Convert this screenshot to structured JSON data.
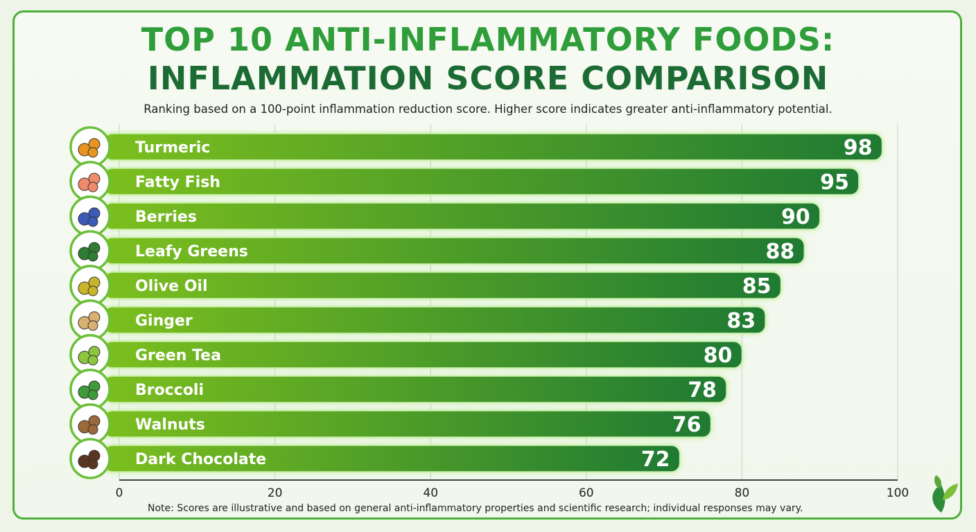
{
  "chart_data": {
    "type": "bar",
    "orientation": "horizontal",
    "title": "TOP 10 ANTI-INFLAMMATORY FOODS:",
    "title_line2": "INFLAMMATION SCORE COMPARISON",
    "subtitle": "Ranking based on a 100-point inflammation reduction score. Higher score indicates greater anti-inflammatory potential.",
    "categories": [
      "Turmeric",
      "Fatty Fish",
      "Berries",
      "Leafy Greens",
      "Olive Oil",
      "Ginger",
      "Green Tea",
      "Broccoli",
      "Walnuts",
      "Dark Chocolate"
    ],
    "values": [
      98,
      95,
      90,
      88,
      85,
      83,
      80,
      78,
      76,
      72
    ],
    "icons": [
      "turmeric-icon",
      "fish-icon",
      "berries-icon",
      "leafy-greens-icon",
      "olive-oil-icon",
      "ginger-icon",
      "green-tea-icon",
      "broccoli-icon",
      "walnut-icon",
      "chocolate-icon"
    ],
    "icon_colors": [
      "#e8951f",
      "#f08a6a",
      "#3b5bb8",
      "#2f7d32",
      "#c9b52a",
      "#d9b070",
      "#8cc63f",
      "#3f9a3a",
      "#9a6a3a",
      "#5a3522"
    ],
    "xlim": [
      0,
      100
    ],
    "xticks": [
      "0",
      "20",
      "40",
      "60",
      "80",
      "100"
    ],
    "grid": true,
    "bar_colors": {
      "start": "#7cbf1e",
      "end": "#1f7a33",
      "glow": "#9be86a"
    },
    "note": "Note: Scores are illustrative and based on general anti-inflammatory properties and scientific research; individual responses may vary."
  }
}
